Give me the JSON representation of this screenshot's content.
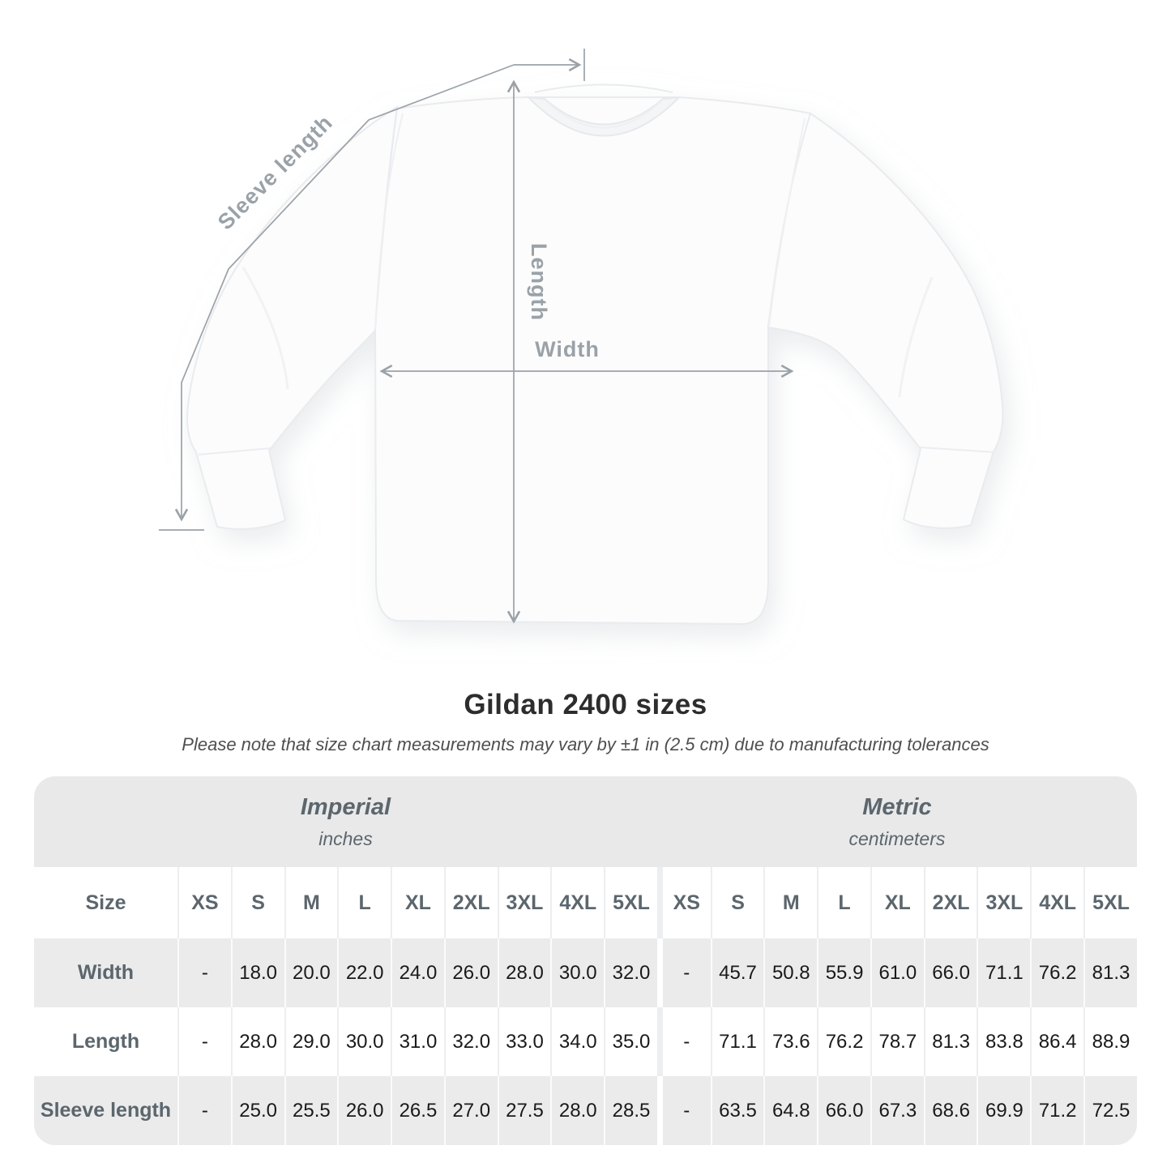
{
  "diagram": {
    "sleeve_length_label": "Sleeve length",
    "length_label": "Length",
    "width_label": "Width"
  },
  "title": "Gildan 2400 sizes",
  "subtitle": "Please note that size chart measurements may vary by ±1 in (2.5 cm) due to manufacturing tolerances",
  "chart_data": {
    "type": "table",
    "size_header": "Size",
    "sizes": [
      "XS",
      "S",
      "M",
      "L",
      "XL",
      "2XL",
      "3XL",
      "4XL",
      "5XL"
    ],
    "unit_groups": [
      {
        "name": "Imperial",
        "unit": "inches"
      },
      {
        "name": "Metric",
        "unit": "centimeters"
      }
    ],
    "rows": [
      {
        "label": "Width",
        "imperial": [
          "-",
          "18.0",
          "20.0",
          "22.0",
          "24.0",
          "26.0",
          "28.0",
          "30.0",
          "32.0"
        ],
        "metric": [
          "-",
          "45.7",
          "50.8",
          "55.9",
          "61.0",
          "66.0",
          "71.1",
          "76.2",
          "81.3"
        ]
      },
      {
        "label": "Length",
        "imperial": [
          "-",
          "28.0",
          "29.0",
          "30.0",
          "31.0",
          "32.0",
          "33.0",
          "34.0",
          "35.0"
        ],
        "metric": [
          "-",
          "71.1",
          "73.6",
          "76.2",
          "78.7",
          "81.3",
          "83.8",
          "86.4",
          "88.9"
        ]
      },
      {
        "label": "Sleeve length",
        "imperial": [
          "-",
          "25.0",
          "25.5",
          "26.0",
          "26.5",
          "27.0",
          "27.5",
          "28.0",
          "28.5"
        ],
        "metric": [
          "-",
          "63.5",
          "64.8",
          "66.0",
          "67.3",
          "68.6",
          "69.9",
          "71.2",
          "72.5"
        ]
      }
    ]
  },
  "colors": {
    "annotation": "#9aa2a8",
    "band_bg": "#e9e9ea",
    "row_alt_bg": "#ebebec",
    "header_text": "#5c666d",
    "value_text": "#1a1a1a",
    "title_text": "#2d2d2d",
    "subtitle_text": "#4f4f4f"
  }
}
